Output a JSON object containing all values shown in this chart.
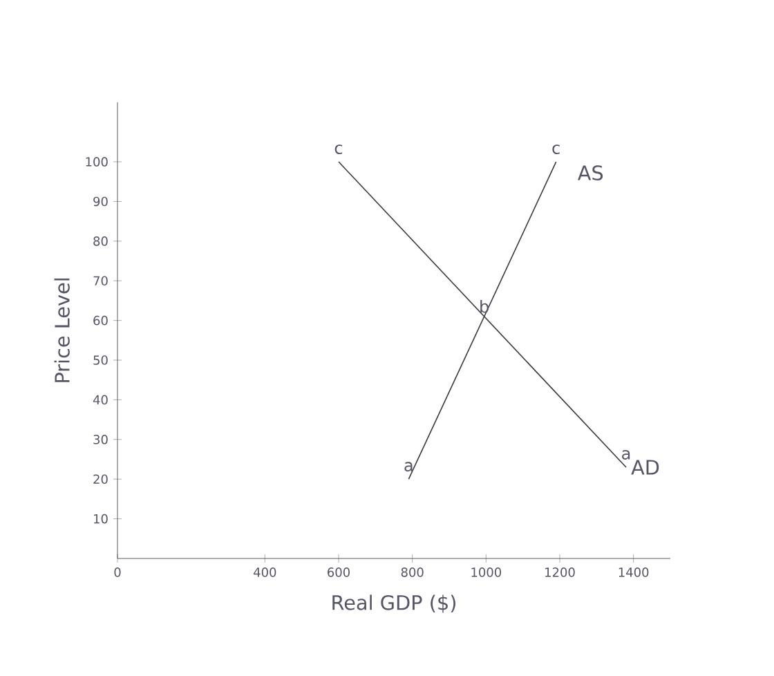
{
  "chart_data": {
    "type": "line",
    "xlabel": "Real GDP ($)",
    "ylabel": "Price Level",
    "series": [
      {
        "name": "AD",
        "color": "#3a3a3a",
        "x": [
          600,
          1380
        ],
        "values": [
          100,
          23
        ]
      },
      {
        "name": "AS",
        "color": "#3a3a3a",
        "x": [
          790,
          1190
        ],
        "values": [
          20,
          100
        ]
      }
    ],
    "xlim": [
      0,
      1500
    ],
    "ylim": [
      0,
      115
    ],
    "xticks": [
      0,
      400,
      600,
      800,
      1000,
      1200,
      1400
    ],
    "yticks": [
      10,
      20,
      30,
      40,
      50,
      60,
      70,
      80,
      90,
      100
    ],
    "annotations": [
      {
        "text": "c",
        "x": 600,
        "y": 100
      },
      {
        "text": "c",
        "x": 1190,
        "y": 100
      },
      {
        "text": "b",
        "x": 995,
        "y": 60
      },
      {
        "text": "a",
        "x": 1380,
        "y": 23
      },
      {
        "text": "a",
        "x": 790,
        "y": 20
      }
    ],
    "grid": false,
    "legend": false,
    "marker": "none",
    "line_style": "solid"
  }
}
